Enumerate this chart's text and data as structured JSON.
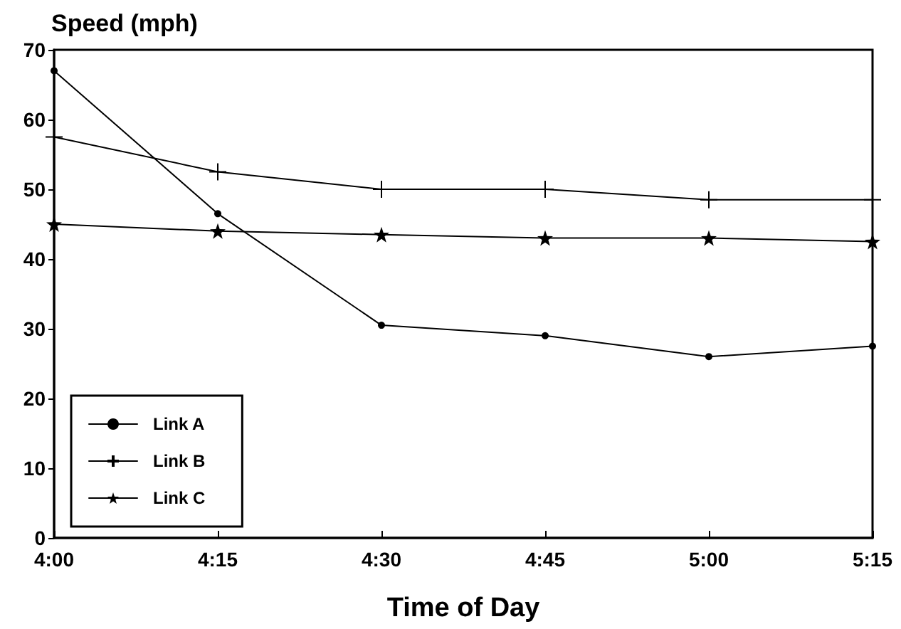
{
  "chart_data": {
    "type": "line",
    "ylabel": "Speed (mph)",
    "xlabel": "Time of Day",
    "x": [
      4,
      4.25,
      4.5,
      4.75,
      5,
      5.25
    ],
    "xlim": [
      4,
      5.25
    ],
    "xticks": [
      {
        "value": 4,
        "label": "4:00"
      },
      {
        "value": 4.25,
        "label": "4:15"
      },
      {
        "value": 4.5,
        "label": "4:30"
      },
      {
        "value": 4.75,
        "label": "4:45"
      },
      {
        "value": 5,
        "label": "5:00"
      },
      {
        "value": 5.25,
        "label": "5:15"
      }
    ],
    "ylim": [
      0,
      70
    ],
    "yticks": [
      0,
      10,
      20,
      30,
      40,
      50,
      60,
      70
    ],
    "legend": "bottom left",
    "line_style": "solid",
    "series": [
      {
        "name": "Link A",
        "color": "#000000",
        "marker": "circle",
        "values": [
          67,
          46.5,
          30.5,
          29,
          26,
          27.5
        ]
      },
      {
        "name": "Link B",
        "color": "#000000",
        "marker": "cross",
        "values": [
          57.5,
          52.5,
          50,
          50,
          48.5,
          48.5
        ]
      },
      {
        "name": "Link C",
        "color": "#000000",
        "marker": "star",
        "values": [
          45,
          44,
          43.5,
          43,
          43,
          42.5
        ]
      }
    ]
  }
}
